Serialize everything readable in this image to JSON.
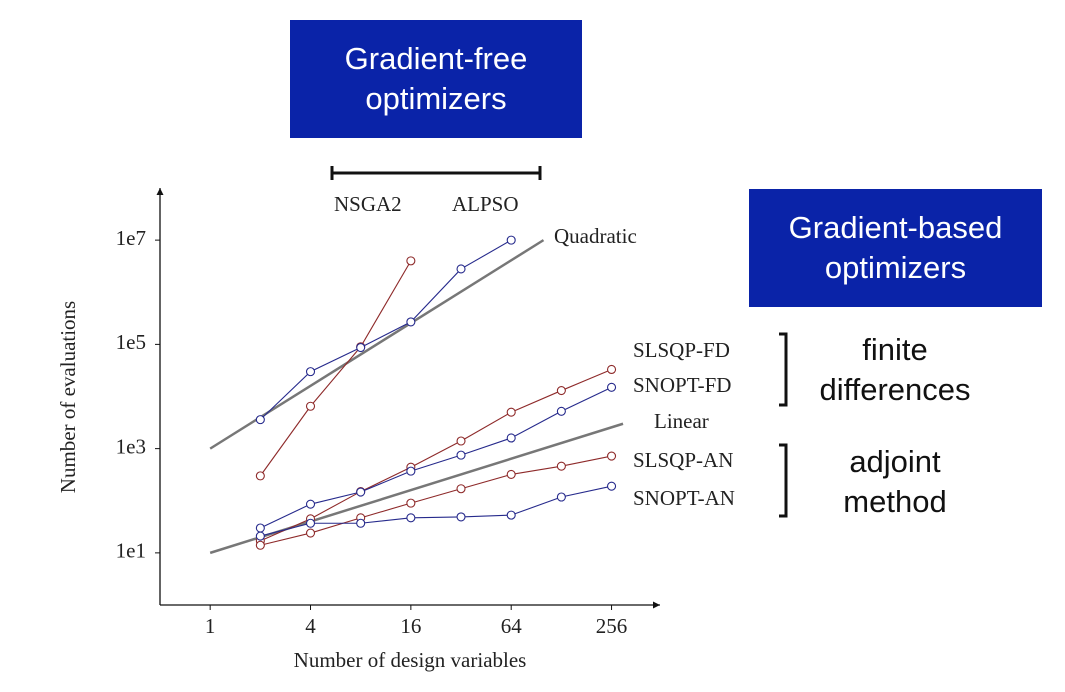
{
  "chart_data": {
    "type": "line",
    "log_x": true,
    "log_y": true,
    "x_label": "Number of design variables",
    "y_label": "Number of evaluations",
    "xlim": [
      0.5,
      500
    ],
    "ylim": [
      1,
      100000000
    ],
    "xticks": [
      1,
      4,
      16,
      64,
      256
    ],
    "yticks": [
      {
        "value": 10,
        "label": "1e1"
      },
      {
        "value": 1000,
        "label": "1e3"
      },
      {
        "value": 100000,
        "label": "1e5"
      },
      {
        "value": 10000000,
        "label": "1e7"
      }
    ],
    "series": [
      {
        "name": "NSGA2",
        "color": "#8e2a2a",
        "x": [
          2,
          4,
          8,
          16
        ],
        "values": [
          300,
          6500,
          90000,
          4000000
        ]
      },
      {
        "name": "ALPSO",
        "color": "#262a8c",
        "x": [
          2,
          4,
          8,
          16,
          32,
          64
        ],
        "values": [
          3600,
          30000,
          87000,
          270000,
          2800000,
          10000000
        ]
      },
      {
        "name": "SLSQP-FD",
        "color": "#8e2a2a",
        "x": [
          2,
          4,
          8,
          16,
          32,
          64,
          128,
          256
        ],
        "values": [
          17,
          45,
          150,
          440,
          1400,
          5000,
          13000,
          33000
        ]
      },
      {
        "name": "SNOPT-FD",
        "color": "#262a8c",
        "x": [
          2,
          4,
          8,
          16,
          32,
          64,
          128,
          256
        ],
        "values": [
          30,
          86,
          147,
          370,
          750,
          1600,
          5200,
          15000
        ]
      },
      {
        "name": "SLSQP-AN",
        "color": "#8e2a2a",
        "x": [
          2,
          4,
          8,
          16,
          32,
          64,
          128,
          256
        ],
        "values": [
          14,
          24,
          47,
          90,
          170,
          320,
          460,
          720
        ]
      },
      {
        "name": "SNOPT-AN",
        "color": "#262a8c",
        "x": [
          2,
          4,
          8,
          16,
          32,
          64,
          128,
          256
        ],
        "values": [
          21,
          37,
          37,
          47,
          49,
          53,
          118,
          190
        ]
      }
    ],
    "trend_lines": [
      {
        "name": "Quadratic",
        "color": "#777777",
        "x": [
          1,
          100
        ],
        "y": [
          1000,
          10000000
        ]
      },
      {
        "name": "Linear",
        "color": "#777777",
        "x": [
          1,
          300
        ],
        "y": [
          10,
          3000
        ]
      }
    ],
    "annotations": {
      "gradient_free": "Gradient-free optimizers",
      "gradient_based": "Gradient-based optimizers",
      "finite": "finite differences",
      "adjoint": "adjoint method"
    }
  }
}
